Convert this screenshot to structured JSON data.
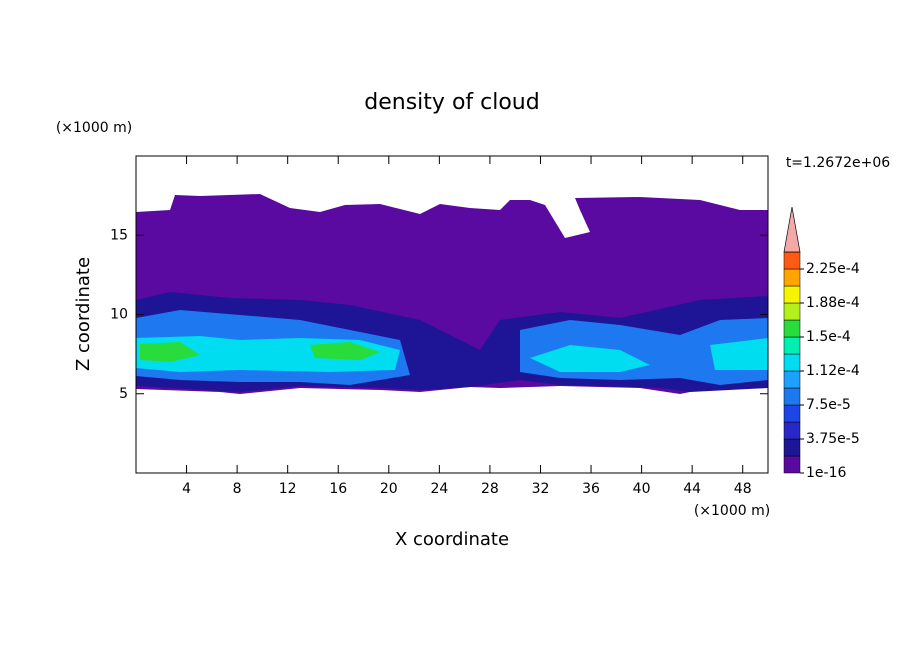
{
  "chart_data": {
    "type": "contour",
    "title": "density of cloud",
    "xlabel": "X coordinate",
    "ylabel": "Z coordinate",
    "x_unit": "(×1000 m)",
    "y_unit": "(×1000 m)",
    "time_label": "t=1.2672e+06",
    "xlim": [
      0,
      50
    ],
    "xticks": [
      4,
      8,
      12,
      16,
      20,
      24,
      28,
      32,
      36,
      40,
      44,
      48
    ],
    "ylim": [
      0,
      20
    ],
    "yticks": [
      5,
      10,
      15
    ],
    "colorbar": {
      "lim": [
        1e-16,
        0.00024375
      ],
      "ticks": [
        {
          "value": 1e-16,
          "label": "1e-16"
        },
        {
          "value": 3.75e-05,
          "label": "3.75e-5"
        },
        {
          "value": 7.5e-05,
          "label": "7.5e-5"
        },
        {
          "value": 0.0001125,
          "label": "1.12e-4"
        },
        {
          "value": 0.00015,
          "label": "1.5e-4"
        },
        {
          "value": 0.0001875,
          "label": "1.88e-4"
        },
        {
          "value": 0.000225,
          "label": "2.25e-4"
        }
      ],
      "colors": [
        "#5a0aa0",
        "#1e1496",
        "#2828c8",
        "#1e46e6",
        "#1e78f0",
        "#1ea0ff",
        "#00dcf0",
        "#00f0b4",
        "#28dc3c",
        "#b4f01e",
        "#f5f500",
        "#ffa500",
        "#ff5a14"
      ],
      "over_color": "#f4a8a8"
    }
  }
}
